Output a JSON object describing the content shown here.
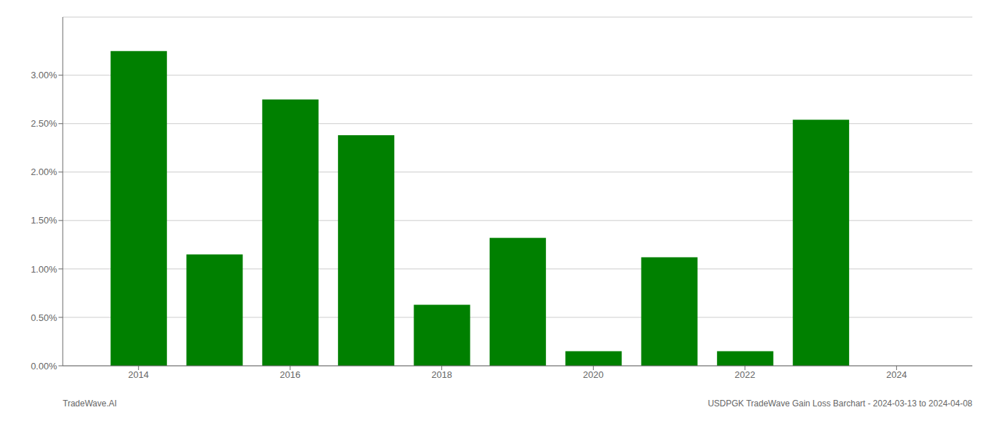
{
  "chart_data": {
    "type": "bar",
    "x": [
      2014,
      2015,
      2016,
      2017,
      2018,
      2019,
      2020,
      2021,
      2022,
      2023,
      2024
    ],
    "values": [
      0.0325,
      0.0115,
      0.0275,
      0.0238,
      0.0063,
      0.0132,
      0.0015,
      0.0112,
      0.0015,
      0.0254,
      0.0
    ],
    "color": "#008000",
    "xlim": [
      2013,
      2025
    ],
    "xticks": [
      2014,
      2016,
      2018,
      2020,
      2022,
      2024
    ],
    "ylim": [
      0,
      0.036
    ],
    "yticks": [
      {
        "value": 0.0,
        "label": "0.00%"
      },
      {
        "value": 0.005,
        "label": "0.50%"
      },
      {
        "value": 0.01,
        "label": "1.00%"
      },
      {
        "value": 0.015,
        "label": "1.50%"
      },
      {
        "value": 0.02,
        "label": "2.00%"
      },
      {
        "value": 0.025,
        "label": "2.50%"
      },
      {
        "value": 0.03,
        "label": "3.00%"
      }
    ],
    "grid": true,
    "annotations": [
      "TradeWave.AI",
      "USDPGK TradeWave Gain Loss Barchart - 2024-03-13 to 2024-04-08"
    ]
  }
}
